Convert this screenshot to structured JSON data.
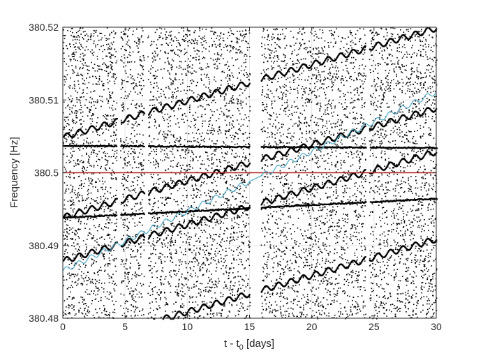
{
  "chart_data": {
    "type": "scatter",
    "title": "",
    "xlabel": "t - t",
    "xlabel_sub": "0",
    "xlabel_suffix": " [days]",
    "ylabel": "Frequency [Hz]",
    "xlim": [
      0,
      30
    ],
    "ylim": [
      380.48,
      380.52
    ],
    "grid": true,
    "x_ticks": [
      0,
      5,
      10,
      15,
      20,
      25,
      30
    ],
    "x_tick_labels": [
      "0",
      "5",
      "10",
      "15",
      "20",
      "25",
      "30"
    ],
    "y_ticks": [
      380.48,
      380.49,
      380.5,
      380.51,
      380.52
    ],
    "y_tick_labels": [
      "380.48",
      "380.49",
      "380.5",
      "380.51",
      "380.52"
    ],
    "data_gaps": [
      [
        4.3,
        4.6
      ],
      [
        6.5,
        6.8
      ],
      [
        15.0,
        15.9
      ],
      [
        24.3,
        24.6
      ]
    ],
    "background_points": {
      "color": "#000000",
      "description_count": 9000
    },
    "horizontal_tracks": [
      {
        "freq": 380.5038,
        "slope_per_day": -1e-05,
        "color": "#000000"
      },
      {
        "freq": 380.4939,
        "slope_per_day": 8.8e-05,
        "color": "#000000"
      }
    ],
    "modulated_tracks": [
      {
        "start_freq": 380.505,
        "slope_per_day": 0.0005,
        "amplitude": 0.0004,
        "period_days": 1,
        "color": "#000000"
      },
      {
        "start_freq": 380.494,
        "slope_per_day": 0.0005,
        "amplitude": 0.0004,
        "period_days": 1,
        "color": "#000000"
      },
      {
        "start_freq": 380.488,
        "slope_per_day": 0.0005,
        "amplitude": 0.0004,
        "period_days": 1,
        "color": "#000000"
      },
      {
        "start_freq": 380.476,
        "slope_per_day": 0.0005,
        "amplitude": 0.0004,
        "period_days": 1,
        "color": "#000000"
      }
    ],
    "series": [
      {
        "name": "",
        "color": "#b22222",
        "x": [
          0,
          30
        ],
        "y": [
          380.5,
          380.5
        ]
      },
      {
        "name": "",
        "color": "#4aa8c8",
        "x_start": 0,
        "x_end": 30,
        "start_freq": 380.4865,
        "slope_per_day": 0.00082,
        "amplitude": 0.00035,
        "period_days": 1
      }
    ]
  }
}
